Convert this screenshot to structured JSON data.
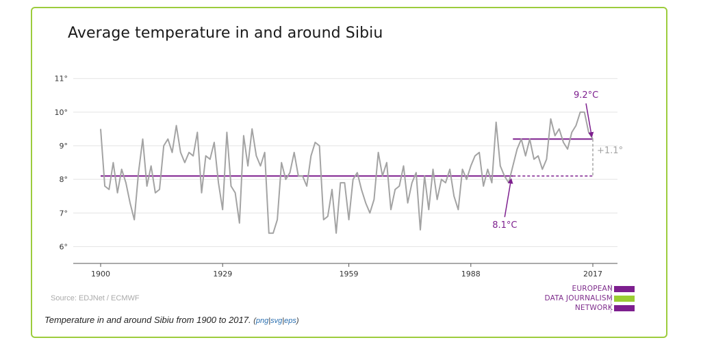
{
  "title": "Average temperature in and around Sibiu",
  "source": "Source: EDJNet / ECMWF",
  "caption": {
    "text": "Temperature in and around Sibiu from 1900 to 2017.",
    "links": [
      "png",
      "svg",
      "eps"
    ]
  },
  "logo": {
    "lines": [
      "EUROPEAN",
      "DATA JOURNALISM",
      "NETWORK"
    ],
    "colors": [
      "#7d1f8e",
      "#9acd32",
      "#7d1f8e"
    ]
  },
  "colors": {
    "border": "#9ccc3c",
    "series": "#a3a3a3",
    "accent": "#7d1f8e",
    "annotation_gray": "#a3a3a3"
  },
  "chart_data": {
    "type": "line",
    "x_start": 1900,
    "x_end": 2017,
    "xlim": [
      1900,
      2017
    ],
    "ylim": [
      5.5,
      11.3
    ],
    "x_ticks": [
      1900,
      1929,
      1959,
      1988,
      2017
    ],
    "x_tick_labels": [
      "1900",
      "1929",
      "1959",
      "1988",
      "2017"
    ],
    "y_ticks": [
      6,
      7,
      8,
      9,
      10,
      11
    ],
    "y_tick_labels": [
      "6°",
      "7°",
      "8°",
      "9°",
      "10°",
      "11°"
    ],
    "grid": true,
    "values": [
      9.5,
      7.8,
      7.7,
      8.5,
      7.6,
      8.3,
      7.9,
      7.3,
      6.8,
      8.2,
      9.2,
      7.8,
      8.4,
      7.6,
      7.7,
      9.0,
      9.2,
      8.8,
      9.6,
      8.8,
      8.5,
      8.8,
      8.7,
      9.4,
      7.6,
      8.7,
      8.6,
      9.1,
      7.9,
      7.1,
      9.4,
      7.8,
      7.6,
      6.7,
      9.3,
      8.4,
      9.5,
      8.7,
      8.4,
      8.8,
      6.4,
      6.4,
      6.8,
      8.5,
      8.0,
      8.2,
      8.8,
      8.1,
      8.1,
      7.8,
      8.7,
      9.1,
      9.0,
      6.8,
      6.9,
      7.7,
      6.4,
      7.9,
      7.9,
      6.8,
      8.0,
      8.2,
      7.7,
      7.3,
      7.0,
      7.4,
      8.8,
      8.1,
      8.5,
      7.1,
      7.7,
      7.8,
      8.4,
      7.3,
      7.9,
      8.2,
      6.5,
      8.1,
      7.1,
      8.3,
      7.4,
      8.0,
      7.9,
      8.3,
      7.5,
      7.1,
      8.3,
      8.0,
      8.4,
      8.7,
      8.8,
      7.8,
      8.3,
      7.9,
      9.7,
      8.4,
      8.1,
      7.9,
      8.4,
      8.9,
      9.2,
      8.7,
      9.2,
      8.6,
      8.7,
      8.3,
      8.6,
      9.8,
      9.3,
      9.5,
      9.1,
      8.9,
      9.4,
      9.6,
      10.0,
      10.0,
      9.4,
      9.2
    ],
    "baseline": {
      "value": 8.1,
      "label": "8.1°C",
      "x_from": 1900,
      "x_to": 2017
    },
    "recent": {
      "value": 9.2,
      "label": "9.2°C",
      "x_from": 1998,
      "x_to": 2017
    },
    "difference_label": "+1.1°"
  }
}
